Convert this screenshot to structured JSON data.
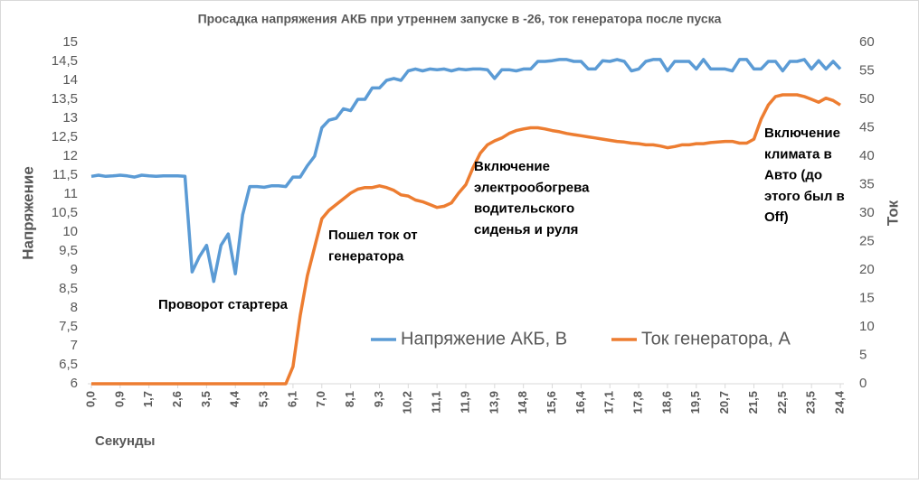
{
  "chart_data": {
    "type": "line",
    "title": "Просадка напряжения АКБ при утреннем запуске в -26, ток генератора после пуска",
    "ylabel": "Напряжение",
    "y2label": "Ток",
    "xlabel": "Секунды",
    "categories": [
      "0,0",
      null,
      null,
      null,
      "0,9",
      null,
      null,
      null,
      "1,7",
      null,
      null,
      null,
      "2,6",
      null,
      null,
      null,
      "3,5",
      null,
      null,
      null,
      "4,4",
      null,
      null,
      null,
      "5,3",
      null,
      null,
      null,
      "6,1",
      null,
      null,
      null,
      "7,0",
      null,
      null,
      null,
      "8,1",
      null,
      null,
      null,
      "9,3",
      null,
      null,
      null,
      "10,2",
      null,
      null,
      null,
      "11,1",
      null,
      null,
      null,
      "11,9",
      null,
      null,
      null,
      "13,9",
      null,
      null,
      null,
      "14,8",
      null,
      null,
      null,
      "15,6",
      null,
      null,
      null,
      "16,4",
      null,
      null,
      null,
      "17,1",
      null,
      null,
      null,
      "17,8",
      null,
      null,
      null,
      "18,6",
      null,
      null,
      null,
      "19,5",
      null,
      null,
      null,
      "20,7",
      null,
      null,
      null,
      "21,5",
      null,
      null,
      null,
      "22,5",
      null,
      null,
      null,
      "23,5",
      null,
      null,
      null,
      "24,4"
    ],
    "series": [
      {
        "name": "Напряжение АКБ, В",
        "color": "#5b9bd5",
        "axis": "y",
        "values": [
          11.47,
          11.5,
          11.47,
          11.48,
          11.5,
          11.48,
          11.45,
          11.5,
          11.48,
          11.47,
          11.48,
          11.48,
          11.48,
          11.47,
          8.95,
          9.35,
          9.65,
          8.7,
          9.65,
          9.95,
          8.9,
          10.45,
          11.2,
          11.2,
          11.18,
          11.22,
          11.22,
          11.2,
          11.45,
          11.45,
          11.75,
          12.0,
          12.75,
          12.95,
          13.0,
          13.25,
          13.2,
          13.5,
          13.5,
          13.8,
          13.8,
          14.0,
          14.05,
          14.0,
          14.25,
          14.3,
          14.25,
          14.3,
          14.28,
          14.3,
          14.25,
          14.3,
          14.28,
          14.3,
          14.3,
          14.28,
          14.05,
          14.28,
          14.28,
          14.25,
          14.3,
          14.3,
          14.5,
          14.5,
          14.52,
          14.55,
          14.55,
          14.5,
          14.5,
          14.3,
          14.3,
          14.52,
          14.5,
          14.55,
          14.5,
          14.25,
          14.3,
          14.5,
          14.55,
          14.55,
          14.25,
          14.5,
          14.5,
          14.5,
          14.3,
          14.55,
          14.3,
          14.3,
          14.3,
          14.25,
          14.55,
          14.55,
          14.3,
          14.3,
          14.5,
          14.5,
          14.25,
          14.5,
          14.5,
          14.55,
          14.3,
          14.52,
          14.3,
          14.5,
          14.3
        ]
      },
      {
        "name": "Ток генератора, А",
        "color": "#ed7d31",
        "axis": "y2",
        "values": [
          0,
          0,
          0,
          0,
          0,
          0,
          0,
          0,
          0,
          0,
          0,
          0,
          0,
          0,
          0,
          0,
          0,
          0,
          0,
          0,
          0,
          0,
          0,
          0,
          0,
          0,
          0,
          0,
          3,
          12,
          19,
          24,
          29,
          30.5,
          31.5,
          32.5,
          33.5,
          34.2,
          34.5,
          34.5,
          34.8,
          34.5,
          34,
          33.2,
          33,
          32.3,
          32,
          31.5,
          31,
          31.2,
          31.8,
          33.5,
          35,
          38,
          40.5,
          42,
          42.7,
          43.2,
          44,
          44.5,
          44.8,
          45,
          45,
          44.8,
          44.5,
          44.3,
          44,
          43.8,
          43.6,
          43.4,
          43.2,
          43.0,
          42.8,
          42.6,
          42.5,
          42.3,
          42.2,
          42,
          42,
          41.8,
          41.5,
          41.7,
          42,
          42,
          42.2,
          42.2,
          42.4,
          42.5,
          42.6,
          42.6,
          42.3,
          42.3,
          43,
          46.5,
          49,
          50.5,
          50.8,
          50.8,
          50.8,
          50.5,
          50,
          49.5,
          50.2,
          49.8,
          49
        ]
      }
    ],
    "ylim": [
      6,
      15
    ],
    "yticks": [
      6,
      {
        "value": 6.5,
        "label": "6,5"
      },
      7,
      {
        "value": 7.5,
        "label": "7,5"
      },
      8,
      {
        "value": 8.5,
        "label": "8,5"
      },
      9,
      {
        "value": 9.5,
        "label": "9,5"
      },
      10,
      {
        "value": 10.5,
        "label": "10,5"
      },
      11,
      {
        "value": 11.5,
        "label": "11,5"
      },
      12,
      {
        "value": 12.5,
        "label": "12,5"
      },
      13,
      {
        "value": 13.5,
        "label": "13,5"
      },
      14,
      {
        "value": 14.5,
        "label": "14,5"
      },
      15
    ],
    "y2lim": [
      0,
      60
    ],
    "y2ticks": [
      0,
      5,
      10,
      15,
      20,
      25,
      30,
      35,
      40,
      45,
      50,
      55,
      60
    ],
    "grid": false,
    "legend": "bottom",
    "annotations": [
      {
        "lines": [
          "Проворот стартера"
        ]
      },
      {
        "lines": [
          "Пошел ток от",
          "генератора"
        ]
      },
      {
        "lines": [
          "Включение",
          "электрообогрева",
          "водительского",
          "сиденья и руля"
        ]
      },
      {
        "lines": [
          "Включение",
          "климата в",
          "Авто (до",
          "этого был в",
          "Off)"
        ]
      }
    ]
  }
}
